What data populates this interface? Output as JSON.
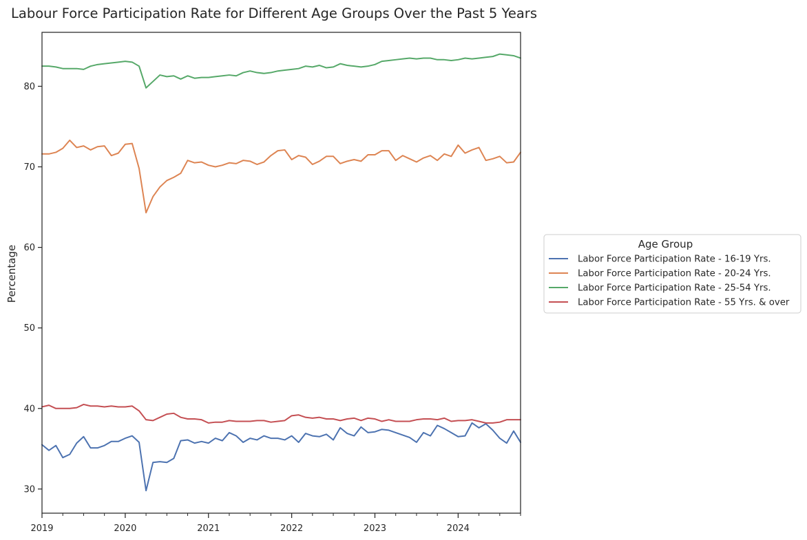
{
  "chart_data": {
    "type": "line",
    "title": "Labour Force Participation Rate for Different Age Groups Over the Past 5 Years",
    "xlabel": "",
    "ylabel": "Percentage",
    "x_start": "2019-01",
    "x_end": "2024-10",
    "x_tick_labels": [
      "2019",
      "2020",
      "2021",
      "2022",
      "2023",
      "2024"
    ],
    "y_ticks": [
      30,
      40,
      50,
      60,
      70,
      80
    ],
    "ylim": [
      27,
      86.7
    ],
    "grid": false,
    "legend": {
      "title": "Age Group",
      "placement": "outside-right",
      "entries": [
        "Labor Force Participation Rate - 16-19 Yrs.",
        "Labor Force Participation Rate - 20-24 Yrs.",
        "Labor Force Participation Rate - 25-54 Yrs.",
        "Labor Force Participation Rate - 55 Yrs. & over"
      ]
    },
    "series": [
      {
        "name": "Labor Force Participation Rate - 16-19 Yrs.",
        "color": "#4c72b0",
        "values": [
          35.5,
          34.8,
          35.4,
          33.9,
          34.3,
          35.7,
          36.5,
          35.1,
          35.1,
          35.4,
          35.9,
          35.9,
          36.3,
          36.6,
          35.8,
          29.8,
          33.3,
          33.4,
          33.3,
          33.8,
          36.0,
          36.1,
          35.7,
          35.9,
          35.7,
          36.3,
          36.0,
          37.0,
          36.6,
          35.8,
          36.3,
          36.1,
          36.6,
          36.3,
          36.3,
          36.1,
          36.6,
          35.8,
          36.9,
          36.6,
          36.5,
          36.8,
          36.1,
          37.6,
          36.9,
          36.6,
          37.7,
          37.0,
          37.1,
          37.4,
          37.3,
          37.0,
          36.7,
          36.4,
          35.8,
          37.0,
          36.6,
          37.9,
          37.5,
          37.0,
          36.5,
          36.6,
          38.2,
          37.6,
          38.1,
          37.3,
          36.3,
          35.7,
          37.2,
          35.8
        ]
      },
      {
        "name": "Labor Force Participation Rate - 20-24 Yrs.",
        "color": "#dd8452",
        "values": [
          71.6,
          71.6,
          71.8,
          72.3,
          73.3,
          72.4,
          72.6,
          72.1,
          72.5,
          72.6,
          71.4,
          71.7,
          72.8,
          72.9,
          69.8,
          64.3,
          66.3,
          67.5,
          68.3,
          68.7,
          69.2,
          70.8,
          70.5,
          70.6,
          70.2,
          70.0,
          70.2,
          70.5,
          70.4,
          70.8,
          70.7,
          70.3,
          70.6,
          71.4,
          72.0,
          72.1,
          70.9,
          71.4,
          71.2,
          70.3,
          70.7,
          71.3,
          71.3,
          70.4,
          70.7,
          70.9,
          70.7,
          71.5,
          71.5,
          72.0,
          72.0,
          70.8,
          71.4,
          71.0,
          70.6,
          71.1,
          71.4,
          70.8,
          71.6,
          71.3,
          72.7,
          71.7,
          72.1,
          72.4,
          70.8,
          71.0,
          71.3,
          70.5,
          70.6,
          71.8
        ]
      },
      {
        "name": "Labor Force Participation Rate - 25-54 Yrs.",
        "color": "#55a868",
        "values": [
          82.5,
          82.5,
          82.4,
          82.2,
          82.2,
          82.2,
          82.1,
          82.5,
          82.7,
          82.8,
          82.9,
          83.0,
          83.1,
          83.0,
          82.5,
          79.8,
          80.6,
          81.4,
          81.2,
          81.3,
          80.9,
          81.3,
          81.0,
          81.1,
          81.1,
          81.2,
          81.3,
          81.4,
          81.3,
          81.7,
          81.9,
          81.7,
          81.6,
          81.7,
          81.9,
          82.0,
          82.1,
          82.2,
          82.5,
          82.4,
          82.6,
          82.3,
          82.4,
          82.8,
          82.6,
          82.5,
          82.4,
          82.5,
          82.7,
          83.1,
          83.2,
          83.3,
          83.4,
          83.5,
          83.4,
          83.5,
          83.5,
          83.3,
          83.3,
          83.2,
          83.3,
          83.5,
          83.4,
          83.5,
          83.6,
          83.7,
          84.0,
          83.9,
          83.8,
          83.5
        ]
      },
      {
        "name": "Labor Force Participation Rate - 55 Yrs. & over",
        "color": "#c44e52",
        "values": [
          40.2,
          40.4,
          40.0,
          40.0,
          40.0,
          40.1,
          40.5,
          40.3,
          40.3,
          40.2,
          40.3,
          40.2,
          40.2,
          40.3,
          39.7,
          38.6,
          38.5,
          38.9,
          39.3,
          39.4,
          38.9,
          38.7,
          38.7,
          38.6,
          38.2,
          38.3,
          38.3,
          38.5,
          38.4,
          38.4,
          38.4,
          38.5,
          38.5,
          38.3,
          38.4,
          38.5,
          39.1,
          39.2,
          38.9,
          38.8,
          38.9,
          38.7,
          38.7,
          38.5,
          38.7,
          38.8,
          38.5,
          38.8,
          38.7,
          38.4,
          38.6,
          38.4,
          38.4,
          38.4,
          38.6,
          38.7,
          38.7,
          38.6,
          38.8,
          38.4,
          38.5,
          38.5,
          38.6,
          38.4,
          38.2,
          38.2,
          38.3,
          38.6,
          38.6,
          38.6
        ]
      }
    ]
  }
}
